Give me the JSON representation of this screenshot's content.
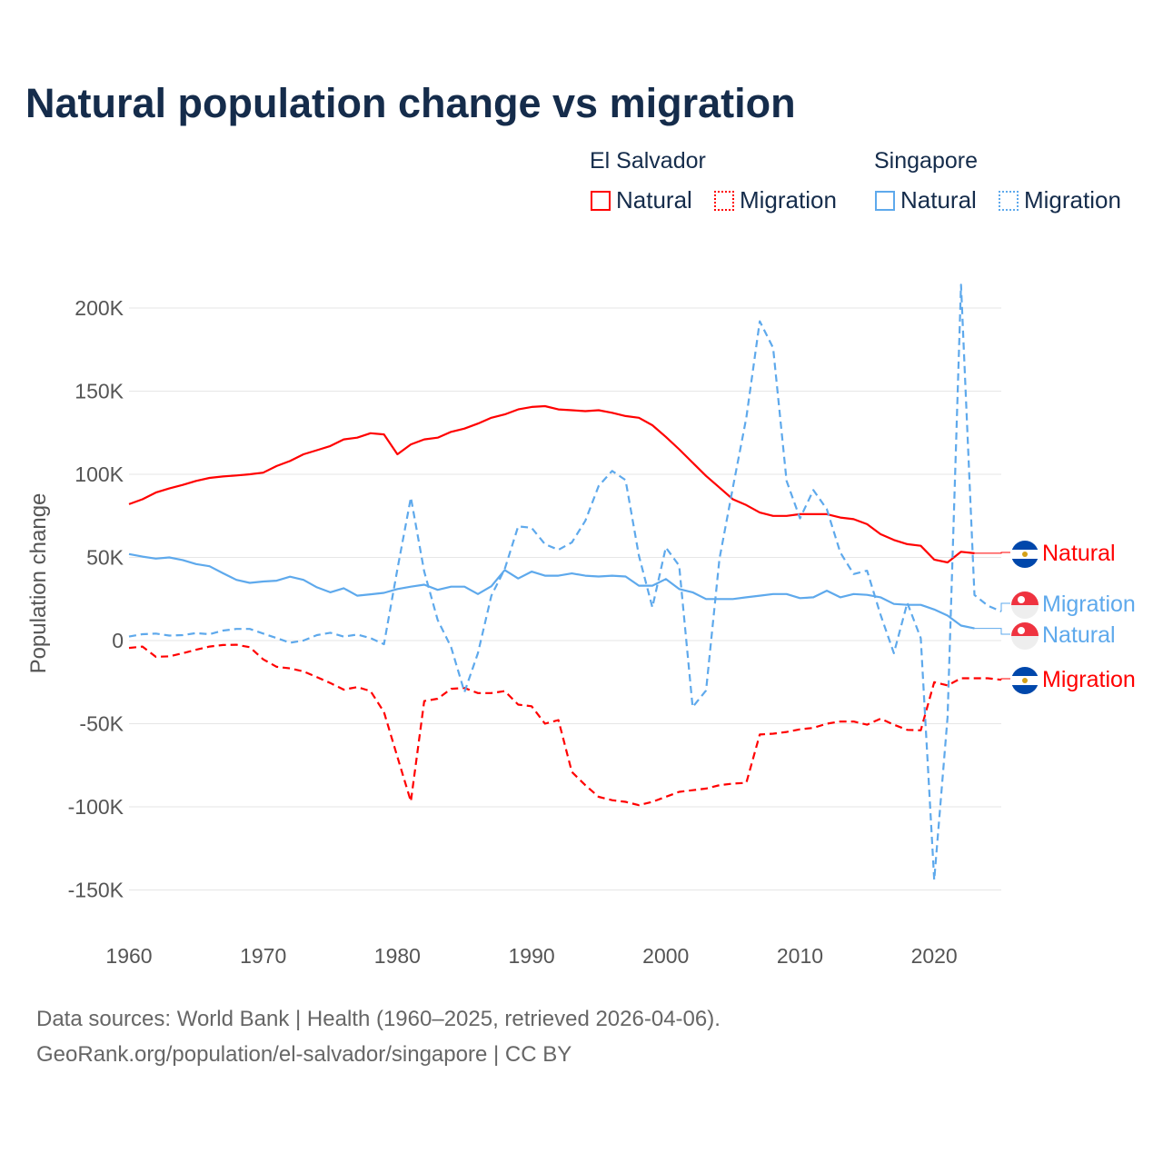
{
  "title": "Natural population change vs migration",
  "legend": {
    "groups": [
      {
        "name": "El Salvador",
        "items": [
          "Natural",
          "Migration"
        ]
      },
      {
        "name": "Singapore",
        "items": [
          "Natural",
          "Migration"
        ]
      }
    ]
  },
  "colors": {
    "el_salvador": "#ff0000",
    "singapore": "#5ea9ec"
  },
  "footer": {
    "line1": "Data sources: World Bank | Health (1960–2025, retrieved 2026-04-06).",
    "line2": "GeoRank.org/population/el-salvador/singapore | CC BY"
  },
  "end_labels": [
    {
      "country": "El Salvador",
      "text": "Natural",
      "flag": "el-salvador-flag-icon"
    },
    {
      "country": "Singapore",
      "text": "Migration",
      "flag": "singapore-flag-icon"
    },
    {
      "country": "Singapore",
      "text": "Natural",
      "flag": "singapore-flag-icon"
    },
    {
      "country": "El Salvador",
      "text": "Migration",
      "flag": "el-salvador-flag-icon"
    }
  ],
  "chart_data": {
    "type": "line",
    "title": "Natural population change vs migration",
    "xlabel": "",
    "ylabel": "Population change",
    "xlim": [
      1960,
      2025
    ],
    "ylim": [
      -165000,
      215000
    ],
    "x_ticks": [
      1960,
      1970,
      1980,
      1990,
      2000,
      2010,
      2020
    ],
    "x_tick_labels": [
      "1960",
      "1970",
      "1980",
      "1990",
      "2000",
      "2010",
      "2020"
    ],
    "y_ticks": [
      -150000,
      -100000,
      -50000,
      0,
      50000,
      100000,
      150000,
      200000
    ],
    "y_tick_labels": [
      "-150K",
      "-100K",
      "-50K",
      "0",
      "50K",
      "100K",
      "150K",
      "200K"
    ],
    "grid": true,
    "legend_position": "top-right",
    "series": [
      {
        "name": "El Salvador Natural",
        "color": "#ff0000",
        "dash": "solid",
        "start_year": 1960,
        "values": [
          82,
          85,
          89,
          91.5,
          93.6,
          96,
          97.8,
          98.7,
          99.3,
          100,
          101,
          105,
          108,
          112,
          114.5,
          117,
          121,
          122,
          124.7,
          124,
          112,
          118,
          121,
          122,
          125.5,
          127.5,
          130.5,
          134,
          136,
          139,
          140.5,
          141,
          139,
          138.5,
          138,
          138.5,
          137,
          135,
          134,
          129.5,
          122.5,
          115,
          107,
          99,
          92,
          85,
          81.5,
          77,
          75,
          75,
          76,
          76,
          76,
          74,
          73,
          70,
          64,
          60.5,
          58,
          57,
          48.7,
          47,
          53.4,
          52.5
        ]
      },
      {
        "name": "El Salvador Migration",
        "color": "#ff0000",
        "dash": "dashed",
        "start_year": 1960,
        "values": [
          -4.4,
          -3.6,
          -9.8,
          -9.5,
          -7.6,
          -5.5,
          -3.6,
          -2.7,
          -2.5,
          -4,
          -11.3,
          -15.8,
          -16.7,
          -18.5,
          -22,
          -25.5,
          -29.5,
          -28,
          -30.4,
          -43,
          -70,
          -96.7,
          -36.4,
          -35,
          -29,
          -28.5,
          -31.6,
          -31.6,
          -30.4,
          -38.5,
          -39.5,
          -50,
          -47.8,
          -79,
          -87,
          -94,
          -96,
          -97,
          -99,
          -97,
          -94,
          -91,
          -90,
          -89,
          -87,
          -86,
          -85.6,
          -56.5,
          -56,
          -55,
          -53.4,
          -52.5,
          -50,
          -48.7,
          -48.7,
          -50.6,
          -47,
          -50.6,
          -53.7,
          -54,
          -25,
          -27,
          -22.7,
          -22.7,
          -22.7,
          -23.6
        ]
      },
      {
        "name": "Singapore Natural",
        "color": "#5ea9ec",
        "dash": "solid",
        "start_year": 1960,
        "values": [
          52,
          50.5,
          49.3,
          50,
          48.4,
          46,
          44.7,
          40.5,
          36.5,
          34.7,
          35.5,
          36,
          38.4,
          36.5,
          32,
          29,
          31.5,
          27,
          27.8,
          28.7,
          31,
          32.4,
          33.6,
          30.5,
          32.4,
          32.4,
          28,
          32.7,
          42.4,
          37.3,
          41.5,
          39,
          39,
          40.4,
          39,
          38.5,
          39,
          38.5,
          33,
          33,
          37,
          31,
          29,
          25,
          25,
          25,
          26,
          27,
          28,
          28,
          25.5,
          26,
          30,
          26,
          28,
          27.5,
          26,
          22,
          21.5,
          21.5,
          18.7,
          15,
          9,
          7.3
        ]
      },
      {
        "name": "Singapore Migration",
        "color": "#5ea9ec",
        "dash": "dashed",
        "start_year": 1960,
        "values": [
          2.4,
          3.8,
          4.2,
          3,
          3.3,
          4.5,
          3.8,
          6,
          7,
          7,
          4.2,
          1.5,
          -1.3,
          0,
          3.3,
          4.7,
          2.4,
          3.6,
          1.5,
          -2.2,
          43,
          86,
          41.5,
          12.4,
          -4,
          -31,
          -7.6,
          27,
          43,
          68.7,
          67.8,
          58,
          54.6,
          59,
          72,
          93,
          102,
          96.5,
          51,
          20,
          56,
          45,
          -40,
          -30,
          49,
          92,
          134,
          192,
          176,
          96,
          73.5,
          90.5,
          79,
          53,
          40,
          42,
          15.6,
          -7.6,
          22.7,
          1.4,
          -144,
          -46,
          214,
          27.4,
          21,
          17.5
        ]
      }
    ],
    "value_unit": "thousands"
  }
}
